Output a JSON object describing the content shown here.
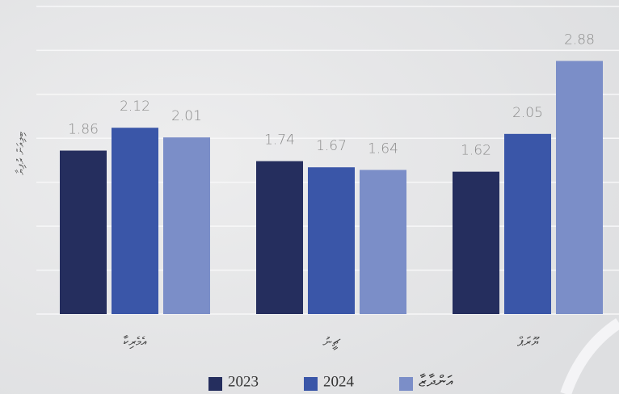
{
  "chart_data": {
    "type": "bar",
    "ylabel": "ބިލިއަން ރުފިޔާ",
    "categories": [
      "އެމެރިކާ",
      "ޗީނު",
      "ޔޫރަޕް"
    ],
    "series": [
      {
        "name": "2023",
        "color": "#252e5e",
        "values": [
          1.86,
          1.74,
          1.62
        ]
      },
      {
        "name": "2024",
        "color": "#3a56a8",
        "values": [
          2.12,
          1.67,
          2.05
        ]
      },
      {
        "name": "އަންދާޒާ",
        "color": "#7b8ec8",
        "values": [
          2.01,
          1.64,
          2.88
        ]
      }
    ],
    "ylim": [
      0,
      3.5
    ],
    "yticks": [
      0,
      0.5,
      1,
      1.5,
      2,
      2.5,
      3,
      3.5
    ],
    "grid": true,
    "legend": "bottom"
  }
}
